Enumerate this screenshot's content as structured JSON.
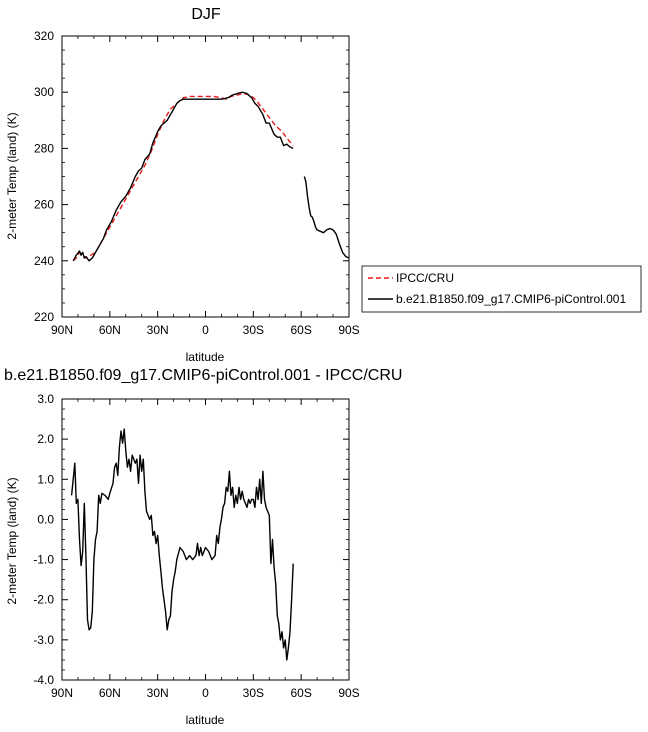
{
  "chart_data": [
    {
      "type": "line",
      "title": "DJF",
      "xlabel": "latitude",
      "ylabel": "2-meter Temp (land) (K)",
      "xlim": [
        90,
        -90
      ],
      "ylim": [
        220,
        320
      ],
      "x_ticks": [
        {
          "value": 90,
          "label": "90N"
        },
        {
          "value": 60,
          "label": "60N"
        },
        {
          "value": 30,
          "label": "30N"
        },
        {
          "value": 0,
          "label": "0"
        },
        {
          "value": -30,
          "label": "30S"
        },
        {
          "value": -60,
          "label": "60S"
        },
        {
          "value": -90,
          "label": "90S"
        }
      ],
      "y_ticks": [
        220,
        240,
        260,
        280,
        300,
        320
      ],
      "legend_position": "right",
      "series": [
        {
          "name": "IPCC/CRU",
          "color": "#e41a1c",
          "dash": "dashed",
          "points": [
            [
              83,
              240
            ],
            [
              81,
              241
            ],
            [
              79,
              243
            ],
            [
              77,
              242
            ],
            [
              75,
              241
            ],
            [
              72,
              242
            ],
            [
              69,
              243
            ],
            [
              66,
              246
            ],
            [
              62,
              250
            ],
            [
              58,
              254
            ],
            [
              54,
              258
            ],
            [
              50,
              262
            ],
            [
              46,
              266
            ],
            [
              42,
              270
            ],
            [
              38,
              274
            ],
            [
              34,
              279
            ],
            [
              30,
              285
            ],
            [
              26,
              290
            ],
            [
              22,
              294
            ],
            [
              18,
              296
            ],
            [
              14,
              298
            ],
            [
              10,
              298.5
            ],
            [
              5,
              298.5
            ],
            [
              0,
              298.5
            ],
            [
              -5,
              298.5
            ],
            [
              -10,
              298
            ],
            [
              -13,
              297.5
            ],
            [
              -16,
              298.5
            ],
            [
              -20,
              299
            ],
            [
              -24,
              299.5
            ],
            [
              -28,
              299
            ],
            [
              -32,
              297
            ],
            [
              -36,
              294
            ],
            [
              -40,
              291
            ],
            [
              -44,
              288
            ],
            [
              -48,
              286
            ],
            [
              -52,
              283
            ],
            [
              -55,
              281
            ]
          ]
        },
        {
          "name": "b.e21.B1850.f09_g17.CMIP6-piControl.001",
          "color": "#000000",
          "dash": "solid",
          "segments": [
            [
              [
                83,
                240
              ],
              [
                81,
                242
              ],
              [
                79,
                243.5
              ],
              [
                78,
                242
              ],
              [
                77,
                243
              ],
              [
                76,
                241
              ],
              [
                75,
                241.5
              ],
              [
                73,
                240
              ],
              [
                71,
                241
              ],
              [
                69,
                243
              ],
              [
                67,
                245
              ],
              [
                64,
                248
              ],
              [
                62,
                251
              ],
              [
                59,
                254
              ],
              [
                56,
                258
              ],
              [
                53,
                261
              ],
              [
                50,
                263
              ],
              [
                47,
                266
              ],
              [
                44,
                270
              ],
              [
                42,
                272
              ],
              [
                40,
                273
              ],
              [
                38,
                276
              ],
              [
                35,
                278
              ],
              [
                33,
                282
              ],
              [
                30,
                286
              ],
              [
                28,
                288
              ],
              [
                26,
                289
              ],
              [
                24,
                290
              ],
              [
                22,
                292
              ],
              [
                20,
                294
              ],
              [
                18,
                296
              ],
              [
                16,
                297
              ],
              [
                14,
                297.5
              ],
              [
                10,
                297.5
              ],
              [
                5,
                297.5
              ],
              [
                0,
                297.5
              ],
              [
                -5,
                297.5
              ],
              [
                -10,
                297.5
              ],
              [
                -14,
                298
              ],
              [
                -17,
                299
              ],
              [
                -20,
                299.5
              ],
              [
                -23,
                300
              ],
              [
                -26,
                299.5
              ],
              [
                -29,
                298
              ],
              [
                -31,
                296
              ],
              [
                -33,
                295
              ],
              [
                -36,
                292
              ],
              [
                -38,
                289
              ],
              [
                -40,
                289
              ],
              [
                -43,
                285
              ],
              [
                -45,
                284
              ],
              [
                -47,
                284
              ],
              [
                -49,
                281
              ],
              [
                -51,
                281.5
              ],
              [
                -53,
                280.5
              ],
              [
                -55,
                280
              ]
            ],
            [
              [
                -62,
                270
              ],
              [
                -63,
                268
              ],
              [
                -64,
                263
              ],
              [
                -65,
                259
              ],
              [
                -66,
                256
              ],
              [
                -67,
                255.5
              ],
              [
                -68,
                254
              ],
              [
                -69,
                252
              ],
              [
                -70,
                251
              ],
              [
                -72,
                250.5
              ],
              [
                -74,
                250
              ],
              [
                -76,
                251
              ],
              [
                -78,
                251.5
              ],
              [
                -80,
                251
              ],
              [
                -82,
                249.5
              ],
              [
                -84,
                246
              ],
              [
                -86,
                243
              ],
              [
                -88,
                241.5
              ],
              [
                -90,
                241
              ]
            ]
          ]
        }
      ]
    },
    {
      "type": "line",
      "title": "b.e21.B1850.f09_g17.CMIP6-piControl.001 - IPCC/CRU",
      "xlabel": "latitude",
      "ylabel": "2-meter Temp (land) (K)",
      "xlim": [
        90,
        -90
      ],
      "ylim": [
        -4,
        3
      ],
      "x_ticks": [
        {
          "value": 90,
          "label": "90N"
        },
        {
          "value": 60,
          "label": "60N"
        },
        {
          "value": 30,
          "label": "30N"
        },
        {
          "value": 0,
          "label": "0"
        },
        {
          "value": -30,
          "label": "30S"
        },
        {
          "value": -60,
          "label": "60S"
        },
        {
          "value": -90,
          "label": "90S"
        }
      ],
      "y_ticks": [
        {
          "value": 3,
          "label": "3.0"
        },
        {
          "value": 2,
          "label": "2.0"
        },
        {
          "value": 1,
          "label": "1.0"
        },
        {
          "value": 0,
          "label": "0.0"
        },
        {
          "value": -1,
          "label": "-1.0"
        },
        {
          "value": -2,
          "label": "-2.0"
        },
        {
          "value": -3,
          "label": "-3.0"
        },
        {
          "value": -4,
          "label": "-4.0"
        }
      ],
      "series": [
        {
          "color": "#000000",
          "dash": "solid",
          "points": [
            [
              84,
              0.6
            ],
            [
              83,
              1.0
            ],
            [
              82,
              1.4
            ],
            [
              81,
              0.4
            ],
            [
              80,
              0.5
            ],
            [
              79,
              -0.5
            ],
            [
              78,
              -1.15
            ],
            [
              77,
              -0.8
            ],
            [
              76,
              0.4
            ],
            [
              75,
              -0.9
            ],
            [
              74,
              -2.5
            ],
            [
              73,
              -2.75
            ],
            [
              72,
              -2.7
            ],
            [
              71,
              -2.3
            ],
            [
              70,
              -1.0
            ],
            [
              69,
              -0.5
            ],
            [
              68,
              -0.3
            ],
            [
              67,
              0.6
            ],
            [
              66,
              0.4
            ],
            [
              65,
              0.65
            ],
            [
              63,
              0.6
            ],
            [
              61,
              0.5
            ],
            [
              60,
              0.65
            ],
            [
              58,
              0.9
            ],
            [
              57,
              1.3
            ],
            [
              56,
              1.4
            ],
            [
              55,
              1.1
            ],
            [
              54,
              1.8
            ],
            [
              53,
              2.2
            ],
            [
              52,
              1.9
            ],
            [
              51,
              2.25
            ],
            [
              50,
              1.7
            ],
            [
              49,
              1.3
            ],
            [
              48,
              1.5
            ],
            [
              47,
              1.2
            ],
            [
              46,
              1.6
            ],
            [
              45,
              1.5
            ],
            [
              44,
              1.4
            ],
            [
              43,
              1.5
            ],
            [
              42,
              0.9
            ],
            [
              41,
              1.6
            ],
            [
              40,
              1.2
            ],
            [
              39,
              1.5
            ],
            [
              38,
              0.7
            ],
            [
              37,
              0.2
            ],
            [
              36,
              0.1
            ],
            [
              35,
              0.0
            ],
            [
              34,
              0.1
            ],
            [
              33,
              -0.4
            ],
            [
              32,
              -0.3
            ],
            [
              31,
              -0.6
            ],
            [
              30,
              -0.4
            ],
            [
              29,
              -0.9
            ],
            [
              28,
              -1.3
            ],
            [
              27,
              -1.7
            ],
            [
              26,
              -2.0
            ],
            [
              25,
              -2.3
            ],
            [
              24,
              -2.75
            ],
            [
              23,
              -2.5
            ],
            [
              22,
              -2.4
            ],
            [
              21,
              -1.8
            ],
            [
              20,
              -1.5
            ],
            [
              19,
              -1.3
            ],
            [
              18,
              -1.0
            ],
            [
              16,
              -0.7
            ],
            [
              14,
              -0.8
            ],
            [
              12,
              -1.0
            ],
            [
              10,
              -0.9
            ],
            [
              8,
              -1.0
            ],
            [
              6,
              -0.9
            ],
            [
              5,
              -0.6
            ],
            [
              4,
              -0.9
            ],
            [
              3,
              -0.7
            ],
            [
              2,
              -0.9
            ],
            [
              1,
              -0.8
            ],
            [
              0,
              -0.7
            ],
            [
              -2,
              -0.8
            ],
            [
              -4,
              -1.0
            ],
            [
              -6,
              -0.9
            ],
            [
              -7,
              -0.4
            ],
            [
              -8,
              -0.6
            ],
            [
              -9,
              -0.2
            ],
            [
              -10,
              0.0
            ],
            [
              -11,
              0.3
            ],
            [
              -12,
              0.4
            ],
            [
              -13,
              0.8
            ],
            [
              -14,
              0.7
            ],
            [
              -15,
              1.2
            ],
            [
              -16,
              0.6
            ],
            [
              -17,
              0.8
            ],
            [
              -18,
              0.3
            ],
            [
              -19,
              0.6
            ],
            [
              -20,
              0.4
            ],
            [
              -21,
              0.8
            ],
            [
              -22,
              0.5
            ],
            [
              -23,
              0.7
            ],
            [
              -24,
              0.5
            ],
            [
              -25,
              0.4
            ],
            [
              -26,
              0.3
            ],
            [
              -27,
              0.5
            ],
            [
              -28,
              0.4
            ],
            [
              -29,
              0.5
            ],
            [
              -30,
              0.5
            ],
            [
              -31,
              0.3
            ],
            [
              -32,
              0.8
            ],
            [
              -33,
              0.5
            ],
            [
              -34,
              1.0
            ],
            [
              -35,
              0.4
            ],
            [
              -36,
              1.2
            ],
            [
              -37,
              0.5
            ],
            [
              -38,
              0.3
            ],
            [
              -39,
              0.2
            ],
            [
              -40,
              0.1
            ],
            [
              -41,
              -1.1
            ],
            [
              -42,
              -0.5
            ],
            [
              -43,
              -1.2
            ],
            [
              -44,
              -1.6
            ],
            [
              -45,
              -2.4
            ],
            [
              -46,
              -2.6
            ],
            [
              -47,
              -3.0
            ],
            [
              -48,
              -2.8
            ],
            [
              -49,
              -3.2
            ],
            [
              -50,
              -3.0
            ],
            [
              -51,
              -3.5
            ],
            [
              -52,
              -3.2
            ],
            [
              -53,
              -2.8
            ],
            [
              -54,
              -2.0
            ],
            [
              -55,
              -1.1
            ]
          ]
        }
      ]
    }
  ]
}
